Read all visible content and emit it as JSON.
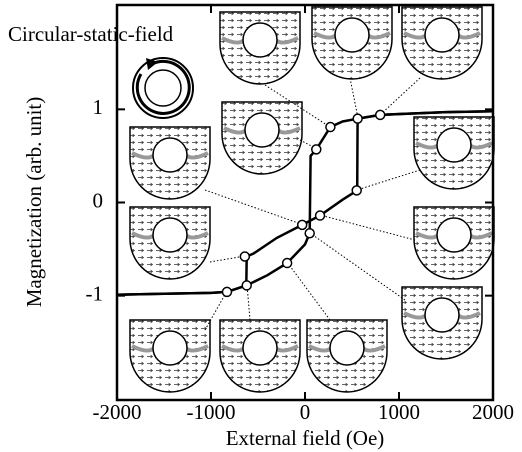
{
  "chart_data": {
    "type": "line",
    "annotation": "Circular-static-field",
    "xlabel": "External field (Oe)",
    "ylabel": "Magnetization (arb. unit)",
    "xlim": [
      -2000,
      2000
    ],
    "ylim": [
      -2.12,
      2.12
    ],
    "xticks": [
      -2000,
      -1000,
      0,
      1000,
      2000
    ],
    "yticks": [
      -1,
      0,
      1
    ],
    "series": [
      {
        "style": "line",
        "color": "#000000",
        "x": [
          2000,
          1500,
          1000,
          800,
          560,
          555,
          400,
          160,
          -30,
          -300,
          -550,
          -620,
          -625,
          -830,
          -1000,
          -1500,
          -2000
        ],
        "values": [
          0.98,
          0.97,
          0.95,
          0.94,
          0.9,
          0.13,
          0.03,
          -0.14,
          -0.24,
          -0.38,
          -0.55,
          -0.58,
          -0.89,
          -0.96,
          -0.97,
          -0.98,
          -0.99
        ]
      },
      {
        "style": "line",
        "color": "#000000",
        "x": [
          -2000,
          -1500,
          -1000,
          -830,
          -620,
          -400,
          -190,
          0,
          50,
          60,
          120,
          270,
          400,
          560,
          800,
          1500,
          2000
        ],
        "values": [
          -0.99,
          -0.98,
          -0.97,
          -0.96,
          -0.89,
          -0.78,
          -0.65,
          -0.45,
          -0.33,
          0.5,
          0.57,
          0.81,
          0.87,
          0.9,
          0.94,
          0.97,
          0.98
        ]
      },
      {
        "style": "markers",
        "color": "#000000",
        "x": [
          -830,
          -620,
          -640,
          -190,
          -30,
          50,
          160,
          120,
          270,
          560,
          550,
          800
        ],
        "values": [
          -0.96,
          -0.89,
          -0.58,
          -0.65,
          -0.24,
          -0.33,
          -0.14,
          0.57,
          0.81,
          0.9,
          0.13,
          0.94
        ]
      }
    ]
  }
}
